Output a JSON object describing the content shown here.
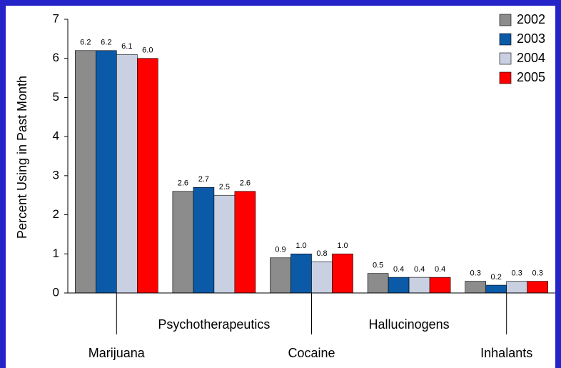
{
  "chart_data": {
    "type": "bar",
    "ylabel": "Percent Using in Past Month",
    "categories": [
      "Marijuana",
      "Psychotherapeutics",
      "Cocaine",
      "Hallucinogens",
      "Inhalants"
    ],
    "series": [
      {
        "name": "2002",
        "color": "#8c8c8c",
        "values": [
          6.2,
          2.6,
          0.9,
          0.5,
          0.3
        ],
        "value_labels": [
          "6.2",
          "2.6",
          "0.9",
          "0.5",
          "0.3"
        ]
      },
      {
        "name": "2003",
        "color": "#0a5aa8",
        "values": [
          6.2,
          2.7,
          1.0,
          0.4,
          0.2
        ],
        "value_labels": [
          "6.2",
          "2.7",
          "1.0",
          "0.4",
          "0.2"
        ]
      },
      {
        "name": "2004",
        "color": "#c8d0e2",
        "values": [
          6.1,
          2.5,
          0.8,
          0.4,
          0.3
        ],
        "value_labels": [
          "6.1",
          "2.5",
          "0.8",
          "0.4",
          "0.3"
        ]
      },
      {
        "name": "2005",
        "color": "#ff0000",
        "values": [
          6.0,
          2.6,
          1.0,
          0.4,
          0.3
        ],
        "value_labels": [
          "6.0",
          "2.6",
          "1.0",
          "0.4",
          "0.3"
        ]
      }
    ],
    "ylim": [
      0,
      7
    ],
    "yticks": [
      0,
      1,
      2,
      3,
      4,
      5,
      6,
      7
    ],
    "legend": "top-right"
  }
}
